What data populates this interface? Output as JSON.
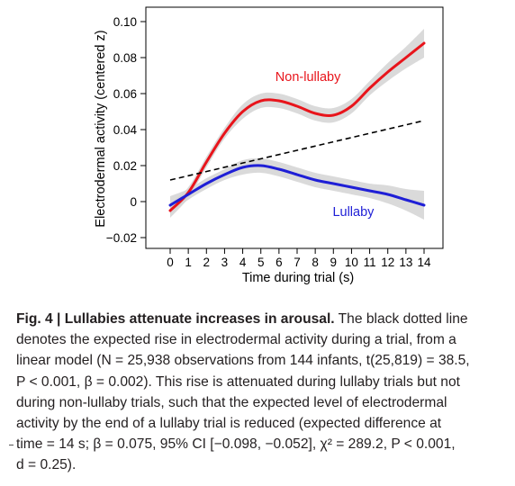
{
  "chart_data": {
    "type": "line",
    "title": "",
    "xlabel": "Time during trial (s)",
    "ylabel": "Electrodermal activity (centered z)",
    "xlim": [
      0,
      14
    ],
    "ylim": [
      -0.02,
      0.1
    ],
    "x_ticks": [
      "0",
      "1",
      "2",
      "3",
      "4",
      "5",
      "6",
      "7",
      "8",
      "9",
      "10",
      "11",
      "12",
      "13",
      "14"
    ],
    "y_ticks": [
      "−0.02",
      "0",
      "0.02",
      "0.04",
      "0.06",
      "0.08",
      "0.10"
    ],
    "y_tick_values": [
      -0.02,
      0,
      0.02,
      0.04,
      0.06,
      0.08,
      0.1
    ],
    "grid": false,
    "series": [
      {
        "name": "Non-lullaby",
        "color": "#e8141b",
        "x": [
          0,
          1,
          2,
          3,
          4,
          5,
          6,
          7,
          8,
          9,
          10,
          11,
          12,
          13,
          14
        ],
        "values": [
          -0.005,
          0.005,
          0.022,
          0.038,
          0.05,
          0.056,
          0.056,
          0.053,
          0.049,
          0.048,
          0.053,
          0.063,
          0.072,
          0.08,
          0.088
        ],
        "band_halfwidth": [
          0.004,
          0.003,
          0.003,
          0.003,
          0.004,
          0.004,
          0.004,
          0.004,
          0.004,
          0.004,
          0.004,
          0.004,
          0.005,
          0.006,
          0.008
        ]
      },
      {
        "name": "Lullaby",
        "color": "#1f1fd6",
        "x": [
          0,
          1,
          2,
          3,
          4,
          5,
          6,
          7,
          8,
          9,
          10,
          11,
          12,
          13,
          14
        ],
        "values": [
          -0.002,
          0.004,
          0.01,
          0.015,
          0.019,
          0.02,
          0.018,
          0.015,
          0.012,
          0.01,
          0.008,
          0.006,
          0.004,
          0.001,
          -0.002
        ],
        "band_halfwidth": [
          0.005,
          0.003,
          0.003,
          0.003,
          0.004,
          0.004,
          0.004,
          0.004,
          0.004,
          0.004,
          0.004,
          0.004,
          0.005,
          0.006,
          0.008
        ]
      },
      {
        "name": "",
        "style": "dashed",
        "color": "#000000",
        "x": [
          0,
          14
        ],
        "values": [
          0.012,
          0.045
        ]
      }
    ],
    "annotations": [
      {
        "text": "Non-lullaby",
        "x": 7.6,
        "y": 0.067,
        "color": "#e8141b"
      },
      {
        "text": "Lullaby",
        "x": 10.1,
        "y": -0.008,
        "color": "#1f1fd6"
      }
    ]
  },
  "caption": {
    "label": "Fig. 4 | Lullabies attenuate increases in arousal.",
    "lines": [
      " The black dotted line",
      "denotes the expected rise in electrodermal activity during a trial, from a",
      "linear model (N = 25,938 observations from 144 infants, t(25,819) = 38.5,",
      "P < 0.001, β = 0.002). This rise is attenuated during lullaby trials but not",
      "during non-lullaby trials, such that the expected level of electrodermal",
      "activity by the end of a lullaby trial is reduced (expected difference at",
      "time = 14 s; β = 0.075, 95% CI [−0.098, −0.052], χ² = 289.2, P < 0.001,",
      "d = 0.25)."
    ]
  }
}
